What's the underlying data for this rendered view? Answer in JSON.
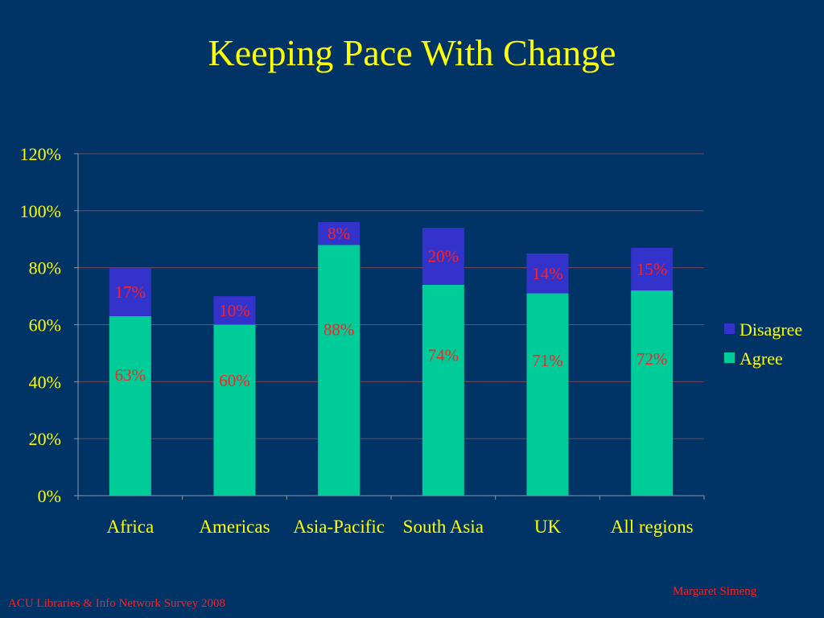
{
  "slide": {
    "title": "Keeping Pace With Change",
    "footer_left": "ACU  Libraries & Info Network  Survey 2008",
    "footer_right": "Margaret Simeng"
  },
  "colors": {
    "background": "#003366",
    "title": "#ffff00",
    "axis_text": "#ffff00",
    "data_label": "#ff2020",
    "agree": "#00cc99",
    "disagree": "#3333cc",
    "gridline": "#7a4a5a",
    "footer": "#ff2020"
  },
  "chart_data": {
    "type": "bar",
    "stacked": true,
    "categories": [
      "Africa",
      "Americas",
      "Asia-Pacific",
      "South Asia",
      "UK",
      "All regions"
    ],
    "series": [
      {
        "name": "Agree",
        "values": [
          63,
          60,
          88,
          74,
          71,
          72
        ],
        "labels": [
          "63%",
          "60%",
          "88%",
          "74%",
          "71%",
          "72%"
        ]
      },
      {
        "name": "Disagree",
        "values": [
          17,
          10,
          8,
          20,
          14,
          15
        ],
        "labels": [
          "17%",
          "10%",
          "8%",
          "20%",
          "14%",
          "15%"
        ]
      }
    ],
    "y_ticks": [
      0,
      20,
      40,
      60,
      80,
      100,
      120
    ],
    "y_tick_labels": [
      "0%",
      "20%",
      "40%",
      "60%",
      "80%",
      "100%",
      "120%"
    ],
    "ylim": [
      0,
      120
    ],
    "grid": true,
    "legend_position": "right",
    "legend": [
      "Disagree",
      "Agree"
    ]
  }
}
